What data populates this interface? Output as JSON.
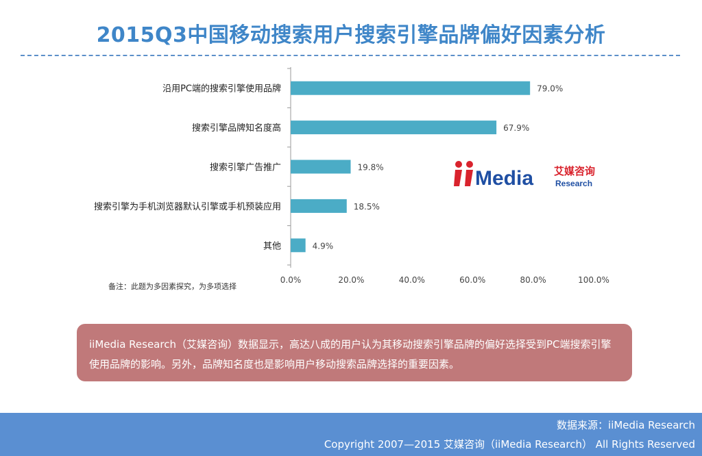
{
  "title": "2015Q3中国移动搜索用户搜索引擎品牌偏好因素分析",
  "note": "备注：此题为多因素探究，为多项选择",
  "logo": {
    "brand_en": "iiMedia",
    "brand_cn": "艾媒咨询",
    "brand_sub": "Research",
    "colors": {
      "red": "#d9232d",
      "blue": "#1f4fa3"
    }
  },
  "summary": "iiMedia Research（艾媒咨询）数据显示，高达八成的用户认为其移动搜索引擎品牌的偏好选择受到PC端搜索引擎使用品牌的影响。另外，品牌知名度也是影响用户移动搜索品牌选择的重要因素。",
  "footer": {
    "source": "数据来源：iiMedia Research",
    "copyright": "Copyright 2007—2015 艾媒咨询（iiMedia Research） All Rights Reserved"
  },
  "colors": {
    "title": "#3f86c8",
    "bar": "#4bacc6",
    "summary_bg": "#c0797a",
    "footer_bg": "#5a8fd2"
  },
  "chart_data": {
    "type": "bar",
    "orientation": "horizontal",
    "categories": [
      "沿用PC端的搜索引擎使用品牌",
      "搜索引擎品牌知名度高",
      "搜索引擎广告推广",
      "搜索引擎为手机浏览器默认引擎或手机预装应用",
      "其他"
    ],
    "values": [
      79.0,
      67.9,
      19.8,
      18.5,
      4.9
    ],
    "value_labels": [
      "79.0%",
      "67.9%",
      "19.8%",
      "18.5%",
      "4.9%"
    ],
    "xlim": [
      0,
      100
    ],
    "xticks": [
      0,
      20,
      40,
      60,
      80,
      100
    ],
    "xtick_labels": [
      "0.0%",
      "20.0%",
      "40.0%",
      "60.0%",
      "80.0%",
      "100.0%"
    ],
    "title": "",
    "xlabel": "",
    "ylabel": "",
    "grid": false,
    "legend": "none"
  }
}
